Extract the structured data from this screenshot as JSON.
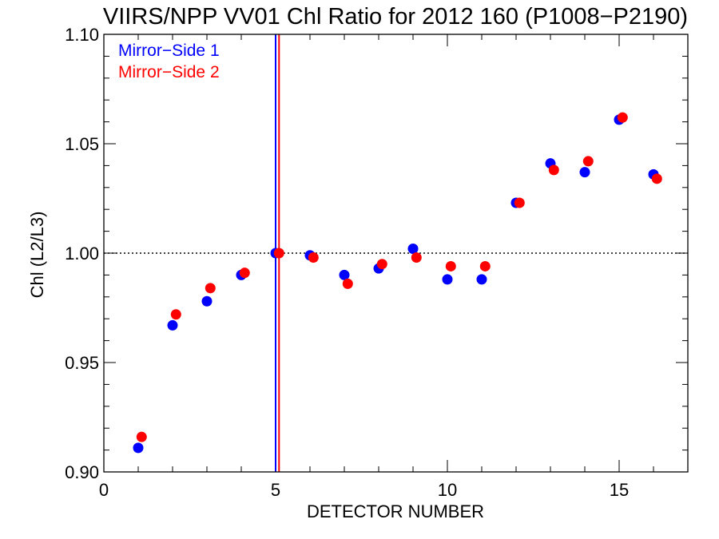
{
  "chart_data": {
    "type": "scatter",
    "title": "VIIRS/NPP VV01 Chl Ratio for 2012 160 (P1008−P2190)",
    "xlabel": "DETECTOR NUMBER",
    "ylabel": "Chl (L2/L3)",
    "xlim": [
      0,
      17
    ],
    "ylim": [
      0.9,
      1.1
    ],
    "xticks": [
      0,
      5,
      10,
      15
    ],
    "xtick_labels": [
      "0",
      "5",
      "10",
      "15"
    ],
    "yticks": [
      0.9,
      0.95,
      1.0,
      1.05,
      1.1
    ],
    "ytick_labels": [
      "0.90",
      "0.95",
      "1.00",
      "1.05",
      "1.10"
    ],
    "x_minor_step": 1,
    "y_minor_step": 0.01,
    "reference_line": {
      "y": 1.0,
      "style": "dotted"
    },
    "vertical_markers": [
      {
        "x": 5.0,
        "color": "#0000ff"
      },
      {
        "x": 5.1,
        "color": "#ff0000"
      }
    ],
    "legend": "top-left",
    "grid": false,
    "series": [
      {
        "name": "Mirror−Side 1",
        "color": "#0000ff",
        "x": [
          1,
          2,
          3,
          4,
          5,
          6,
          7,
          8,
          9,
          10,
          11,
          12,
          13,
          14,
          15,
          16
        ],
        "y": [
          0.911,
          0.967,
          0.978,
          0.99,
          1.0,
          0.999,
          0.99,
          0.993,
          1.002,
          0.988,
          0.988,
          1.023,
          1.041,
          1.037,
          1.061,
          1.036
        ]
      },
      {
        "name": "Mirror−Side 2",
        "color": "#ff0000",
        "x": [
          1.1,
          2.1,
          3.1,
          4.1,
          5.1,
          6.1,
          7.1,
          8.1,
          9.1,
          10.1,
          11.1,
          12.1,
          13.1,
          14.1,
          15.1,
          16.1
        ],
        "y": [
          0.916,
          0.972,
          0.984,
          0.991,
          1.0,
          0.998,
          0.986,
          0.995,
          0.998,
          0.994,
          0.994,
          1.023,
          1.038,
          1.042,
          1.062,
          1.034
        ]
      }
    ]
  }
}
